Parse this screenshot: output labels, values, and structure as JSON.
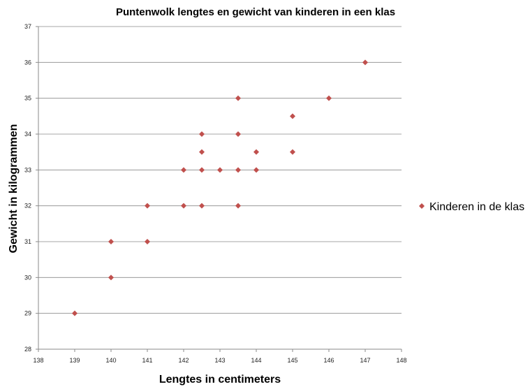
{
  "chart_data": {
    "type": "scatter",
    "title": "Puntenwolk lengtes en gewicht van kinderen in een klas",
    "xlabel": "Lengtes in centimeters",
    "ylabel": "Gewicht in kilogrammen",
    "xlim": [
      138,
      148
    ],
    "ylim": [
      28,
      37
    ],
    "xticks": [
      "138",
      "139",
      "140",
      "141",
      "142",
      "143",
      "144",
      "145",
      "146",
      "147",
      "148"
    ],
    "yticks": [
      "28",
      "29",
      "30",
      "31",
      "32",
      "33",
      "34",
      "35",
      "36",
      "37"
    ],
    "grid": true,
    "legend_position": "right",
    "series": [
      {
        "name": "Kinderen in de klas",
        "color": "#c0504d",
        "marker": "diamond",
        "points": [
          {
            "x": 139,
            "y": 29
          },
          {
            "x": 140,
            "y": 30
          },
          {
            "x": 140,
            "y": 31
          },
          {
            "x": 141,
            "y": 31
          },
          {
            "x": 141,
            "y": 32
          },
          {
            "x": 142,
            "y": 32
          },
          {
            "x": 142,
            "y": 33
          },
          {
            "x": 142.5,
            "y": 32
          },
          {
            "x": 142.5,
            "y": 33
          },
          {
            "x": 142.5,
            "y": 33.5
          },
          {
            "x": 142.5,
            "y": 34
          },
          {
            "x": 143,
            "y": 33
          },
          {
            "x": 143.5,
            "y": 32
          },
          {
            "x": 143.5,
            "y": 33
          },
          {
            "x": 143.5,
            "y": 34
          },
          {
            "x": 143.5,
            "y": 35
          },
          {
            "x": 144,
            "y": 33
          },
          {
            "x": 144,
            "y": 33.5
          },
          {
            "x": 145,
            "y": 33.5
          },
          {
            "x": 145,
            "y": 34.5
          },
          {
            "x": 146,
            "y": 35
          },
          {
            "x": 147,
            "y": 36
          }
        ]
      }
    ]
  }
}
